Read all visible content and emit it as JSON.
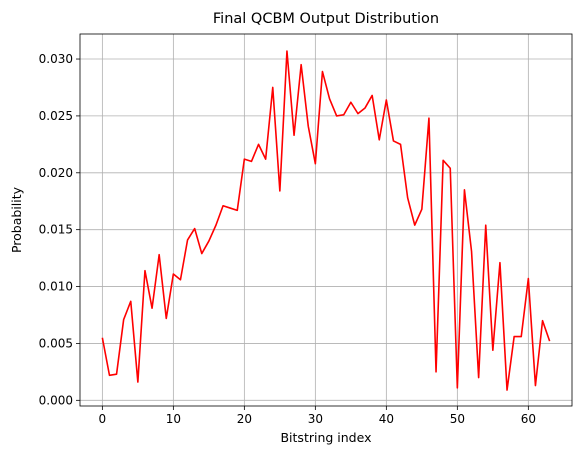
{
  "chart_data": {
    "type": "line",
    "title": "Final QCBM Output Distribution",
    "xlabel": "Bitstring index",
    "ylabel": "Probability",
    "xlim": [
      -3.15,
      66.15
    ],
    "ylim": [
      -0.0005,
      0.0322
    ],
    "xticks": [
      0,
      10,
      20,
      30,
      40,
      50,
      60
    ],
    "xtick_labels": [
      "0",
      "10",
      "20",
      "30",
      "40",
      "50",
      "60"
    ],
    "yticks": [
      0.0,
      0.005,
      0.01,
      0.015,
      0.02,
      0.025,
      0.03
    ],
    "ytick_labels": [
      "0.000",
      "0.005",
      "0.010",
      "0.015",
      "0.020",
      "0.025",
      "0.030"
    ],
    "grid": true,
    "series": [
      {
        "color": "#ff0000",
        "x": [
          0,
          1,
          2,
          3,
          4,
          5,
          6,
          7,
          8,
          9,
          10,
          11,
          12,
          13,
          14,
          15,
          16,
          17,
          18,
          19,
          20,
          21,
          22,
          23,
          24,
          25,
          26,
          27,
          28,
          29,
          30,
          31,
          32,
          33,
          34,
          35,
          36,
          37,
          38,
          39,
          40,
          41,
          42,
          43,
          44,
          45,
          46,
          47,
          48,
          49,
          50,
          51,
          52,
          53,
          54,
          55,
          56,
          57,
          58,
          59,
          60,
          61,
          62,
          63
        ],
        "y": [
          0.0055,
          0.0022,
          0.0023,
          0.0071,
          0.0087,
          0.0016,
          0.0114,
          0.0081,
          0.0128,
          0.0072,
          0.0111,
          0.0106,
          0.0141,
          0.0151,
          0.0129,
          0.014,
          0.0154,
          0.0171,
          0.0169,
          0.0167,
          0.0212,
          0.021,
          0.0225,
          0.0212,
          0.0275,
          0.0184,
          0.0307,
          0.0233,
          0.0295,
          0.0241,
          0.0208,
          0.0289,
          0.0265,
          0.025,
          0.0251,
          0.0262,
          0.0252,
          0.0257,
          0.0268,
          0.0229,
          0.0264,
          0.0228,
          0.0225,
          0.0178,
          0.0154,
          0.0168,
          0.0248,
          0.0025,
          0.0211,
          0.0204,
          0.0011,
          0.0185,
          0.0131,
          0.002,
          0.0154,
          0.0044,
          0.0121,
          0.0009,
          0.0056,
          0.0056,
          0.0107,
          0.0013,
          0.007,
          0.0052
        ]
      }
    ]
  }
}
